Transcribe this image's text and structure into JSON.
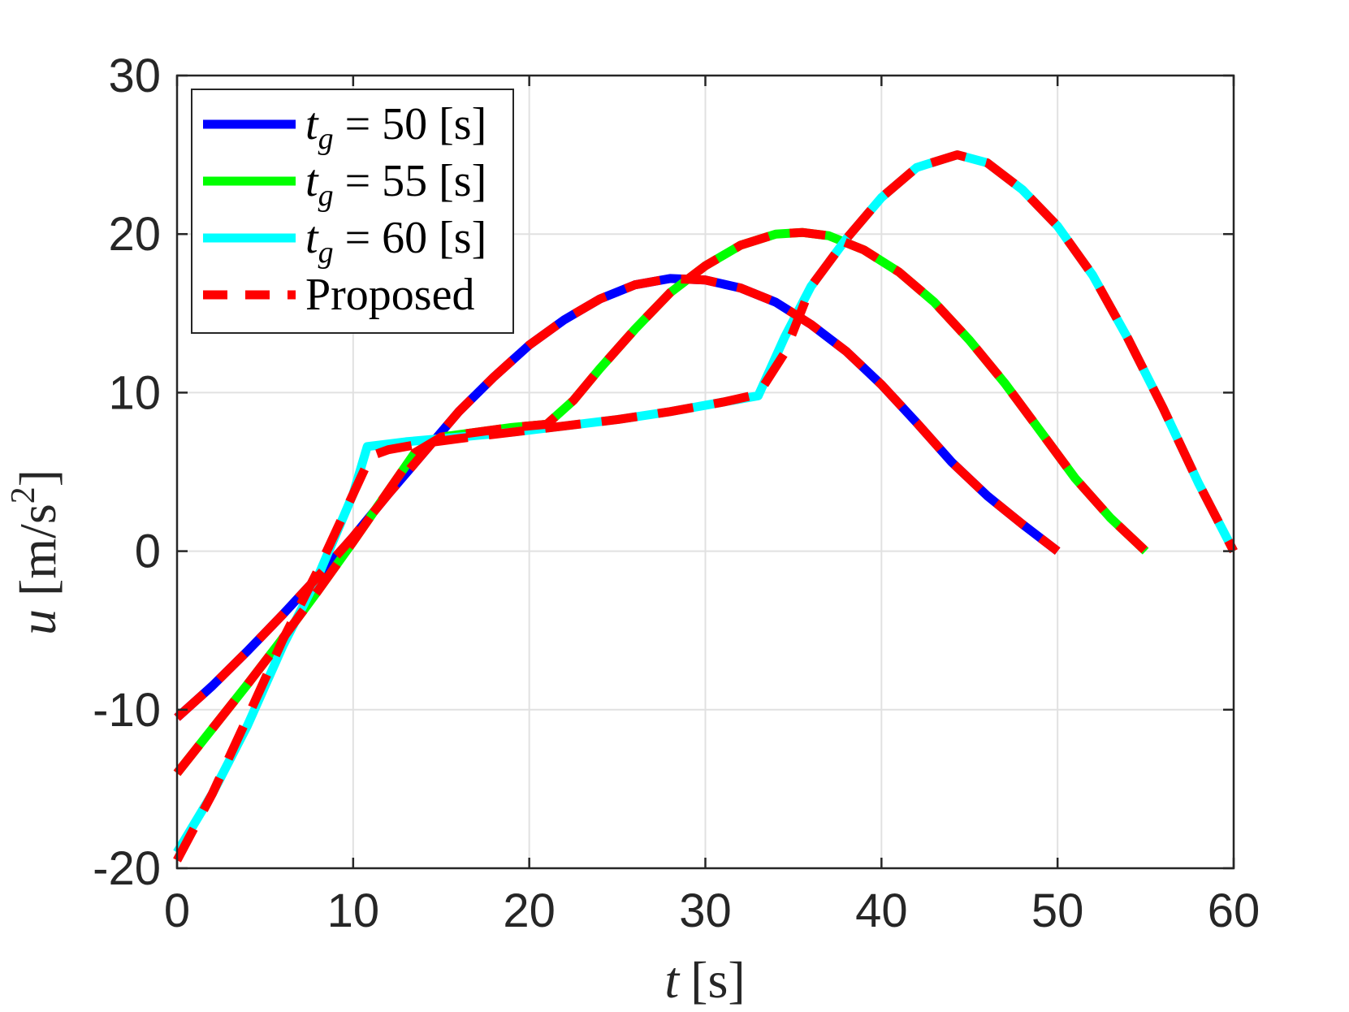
{
  "chart_data": {
    "type": "line",
    "title": "",
    "xlabel": {
      "var": "t",
      "unit": "[s]"
    },
    "ylabel": {
      "var": "u",
      "unit_pre": "[m/s",
      "unit_sup": "2",
      "unit_post": "]"
    },
    "xlim": [
      0,
      60
    ],
    "ylim": [
      -20,
      30
    ],
    "xticks": [
      0,
      10,
      20,
      30,
      40,
      50,
      60
    ],
    "yticks": [
      -20,
      -10,
      0,
      10,
      20,
      30
    ],
    "grid": true,
    "legend_position": "top-left",
    "series": [
      {
        "name": "t_g = 50 [s]",
        "legend": {
          "var": "t",
          "sub": "g",
          "rest": " = 50 [s]"
        },
        "color": "#0000ff",
        "style": "solid",
        "x": [
          0,
          2,
          4,
          6,
          8,
          10,
          12,
          14,
          16,
          18,
          20,
          22,
          24,
          26,
          28,
          30,
          32,
          34,
          36,
          38,
          40,
          42,
          44,
          46,
          48,
          50
        ],
        "y": [
          -10.5,
          -8.5,
          -6.3,
          -4.0,
          -1.6,
          0.9,
          3.6,
          6.2,
          8.8,
          11.0,
          13.0,
          14.6,
          15.9,
          16.8,
          17.2,
          17.1,
          16.6,
          15.7,
          14.3,
          12.6,
          10.5,
          8.1,
          5.6,
          3.5,
          1.7,
          0
        ]
      },
      {
        "name": "t_g = 55 [s]",
        "legend": {
          "var": "t",
          "sub": "g",
          "rest": " = 55 [s]"
        },
        "color": "#00ff00",
        "style": "solid",
        "x": [
          0,
          2,
          4,
          6,
          8,
          10,
          12,
          13.5,
          15,
          17,
          19,
          21,
          22.5,
          24,
          26,
          28,
          30,
          32,
          34,
          35.5,
          37,
          39,
          41,
          43,
          45,
          47,
          49,
          51,
          53,
          55
        ],
        "y": [
          -14,
          -11.2,
          -8.4,
          -5.5,
          -2.5,
          0.6,
          3.8,
          6.2,
          7.2,
          7.5,
          7.8,
          8.0,
          9.5,
          11.5,
          14.0,
          16.3,
          18.0,
          19.3,
          20.0,
          20.1,
          19.9,
          19.0,
          17.6,
          15.7,
          13.3,
          10.6,
          7.6,
          4.6,
          2.1,
          0
        ]
      },
      {
        "name": "t_g = 60 [s]",
        "legend": {
          "var": "t",
          "sub": "g",
          "rest": " = 60 [s]"
        },
        "color": "#00ffff",
        "style": "solid",
        "x": [
          0,
          2,
          4,
          6,
          8,
          10,
          10.8,
          13,
          16,
          19,
          22,
          25,
          28,
          31,
          33,
          34.5,
          36,
          38,
          40,
          42,
          44.3,
          46,
          48,
          50,
          52,
          54,
          56,
          58,
          60
        ],
        "y": [
          -19,
          -15.3,
          -11,
          -6,
          -1.6,
          3.6,
          6.6,
          6.9,
          7.2,
          7.5,
          7.9,
          8.3,
          8.8,
          9.4,
          9.8,
          13.5,
          16.7,
          19.7,
          22.3,
          24.2,
          25.0,
          24.5,
          22.8,
          20.5,
          17.4,
          13.4,
          9.0,
          4.3,
          0
        ]
      },
      {
        "name": "Proposed",
        "legend": {
          "var": "",
          "sub": "",
          "rest": "Proposed"
        },
        "color": "#ff0000",
        "style": "dashed",
        "segments": [
          {
            "x": [
              0,
              2,
              4,
              6,
              8,
              10,
              12,
              14,
              16,
              18,
              20,
              22,
              24,
              26,
              28,
              30,
              32,
              34,
              36,
              38,
              40,
              42,
              44,
              46,
              48,
              50
            ],
            "y": [
              -10.5,
              -8.5,
              -6.3,
              -4.0,
              -1.6,
              0.9,
              3.6,
              6.2,
              8.8,
              11.0,
              13.0,
              14.6,
              15.9,
              16.8,
              17.2,
              17.1,
              16.6,
              15.7,
              14.3,
              12.6,
              10.5,
              8.1,
              5.6,
              3.5,
              1.7,
              0
            ]
          },
          {
            "x": [
              0,
              2,
              4,
              6,
              8,
              10,
              12,
              13.5,
              15,
              17,
              19,
              21,
              22.5,
              24,
              26,
              28,
              30,
              32,
              34,
              35.5,
              37,
              39,
              41,
              43,
              45,
              47,
              49,
              51,
              53,
              55
            ],
            "y": [
              -14,
              -11.2,
              -8.4,
              -5.5,
              -2.5,
              0.6,
              3.8,
              6.2,
              7.2,
              7.5,
              7.8,
              8.0,
              9.5,
              11.5,
              14.0,
              16.3,
              18.0,
              19.3,
              20.0,
              20.1,
              19.9,
              19.0,
              17.6,
              15.7,
              13.3,
              10.6,
              7.6,
              4.6,
              2.1,
              0
            ]
          },
          {
            "x": [
              0,
              2,
              4,
              6,
              8,
              10,
              11,
              12,
              14,
              16,
              19,
              22,
              25,
              28,
              31,
              33,
              34.5,
              36,
              38,
              40,
              42,
              44.3,
              46,
              48,
              50,
              52,
              54,
              56,
              58,
              60
            ],
            "y": [
              -19.5,
              -15.3,
              -10.5,
              -5.6,
              -1.2,
              3.6,
              6.0,
              6.4,
              6.8,
              7.1,
              7.5,
              7.9,
              8.3,
              8.8,
              9.4,
              9.9,
              12.5,
              16.7,
              19.7,
              22.3,
              24.2,
              25.0,
              24.5,
              22.8,
              20.5,
              17.4,
              13.4,
              9.0,
              4.3,
              0
            ]
          }
        ]
      }
    ]
  }
}
